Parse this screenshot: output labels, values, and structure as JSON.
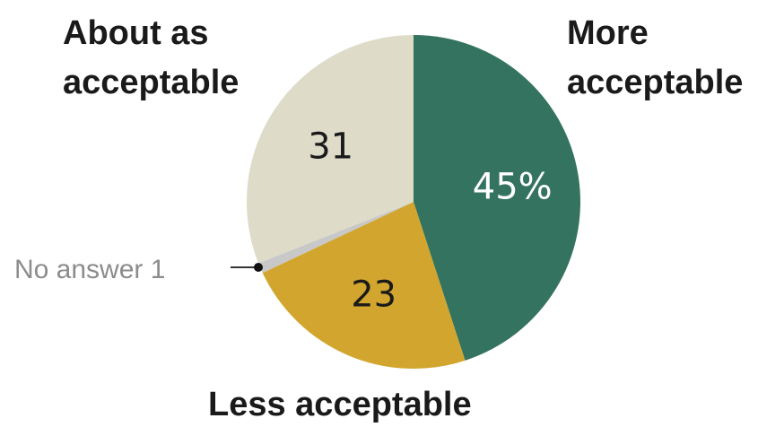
{
  "chart_data": {
    "type": "pie",
    "title": "",
    "slices": [
      {
        "label": "More acceptable",
        "value": 45,
        "value_label": "45%",
        "color": "#34735f",
        "label_color": "#ffffff"
      },
      {
        "label": "Less acceptable",
        "value": 23,
        "value_label": "23",
        "color": "#d2a62e",
        "label_color": "#1a1a1a"
      },
      {
        "label": "No answer",
        "value": 1,
        "value_label": "1",
        "color": "#c8c8c8",
        "label_color": "#8c8c8c"
      },
      {
        "label": "About as acceptable",
        "value": 31,
        "value_label": "31",
        "color": "#dedbc9",
        "label_color": "#1a1a1a"
      }
    ],
    "start_angle": "12 o'clock",
    "direction": "clockwise",
    "legend": "none",
    "callout": {
      "label": "No answer",
      "value": "1"
    }
  },
  "labels": {
    "more_line1": "More",
    "more_line2": "acceptable",
    "about_line1": "About as",
    "about_line2": "acceptable",
    "less": "Less acceptable",
    "no_answer": "No answer 1"
  }
}
